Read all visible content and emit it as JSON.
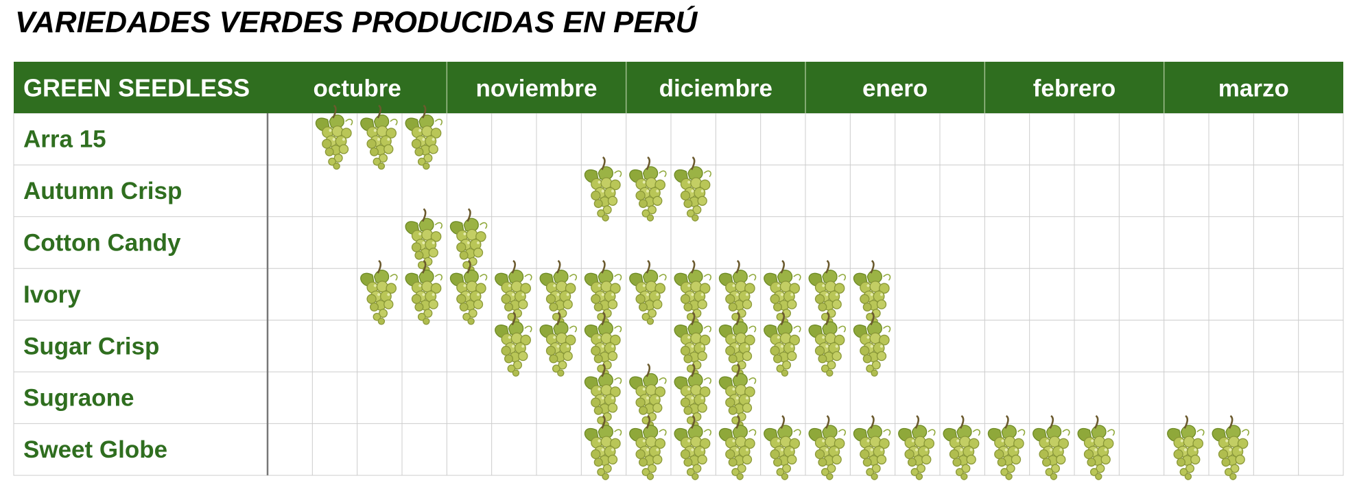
{
  "title": "VARIEDADES VERDES PRODUCIDAS EN PERÚ",
  "header_label": "GREEN SEEDLESS",
  "colors": {
    "header_bg": "#2f6e1f",
    "header_text": "#ffffff",
    "row_label": "#2f6e1f",
    "grid": "#cccccc",
    "grape": "#b9c657"
  },
  "chart_data": {
    "type": "table",
    "subdivisions_per_month": 4,
    "months": [
      "octubre",
      "noviembre",
      "diciembre",
      "enero",
      "febrero",
      "marzo"
    ],
    "rows": [
      {
        "name": "Arra 15",
        "cells": [
          1,
          2,
          3
        ]
      },
      {
        "name": "Autumn Crisp",
        "cells": [
          7,
          8,
          9
        ]
      },
      {
        "name": "Cotton Candy",
        "cells": [
          3,
          4
        ]
      },
      {
        "name": "Ivory",
        "cells": [
          2,
          3,
          4,
          5,
          6,
          7,
          8,
          9,
          10,
          11,
          12,
          13
        ]
      },
      {
        "name": "Sugar Crisp",
        "cells": [
          5,
          6,
          7,
          9,
          10,
          11,
          12,
          13
        ]
      },
      {
        "name": "Sugraone",
        "cells": [
          7,
          8,
          9,
          10
        ]
      },
      {
        "name": "Sweet Globe",
        "cells": [
          7,
          8,
          9,
          10,
          11,
          12,
          13,
          14,
          15,
          16,
          17,
          18,
          20,
          21
        ]
      }
    ],
    "marker": "grape-bunch-icon"
  }
}
